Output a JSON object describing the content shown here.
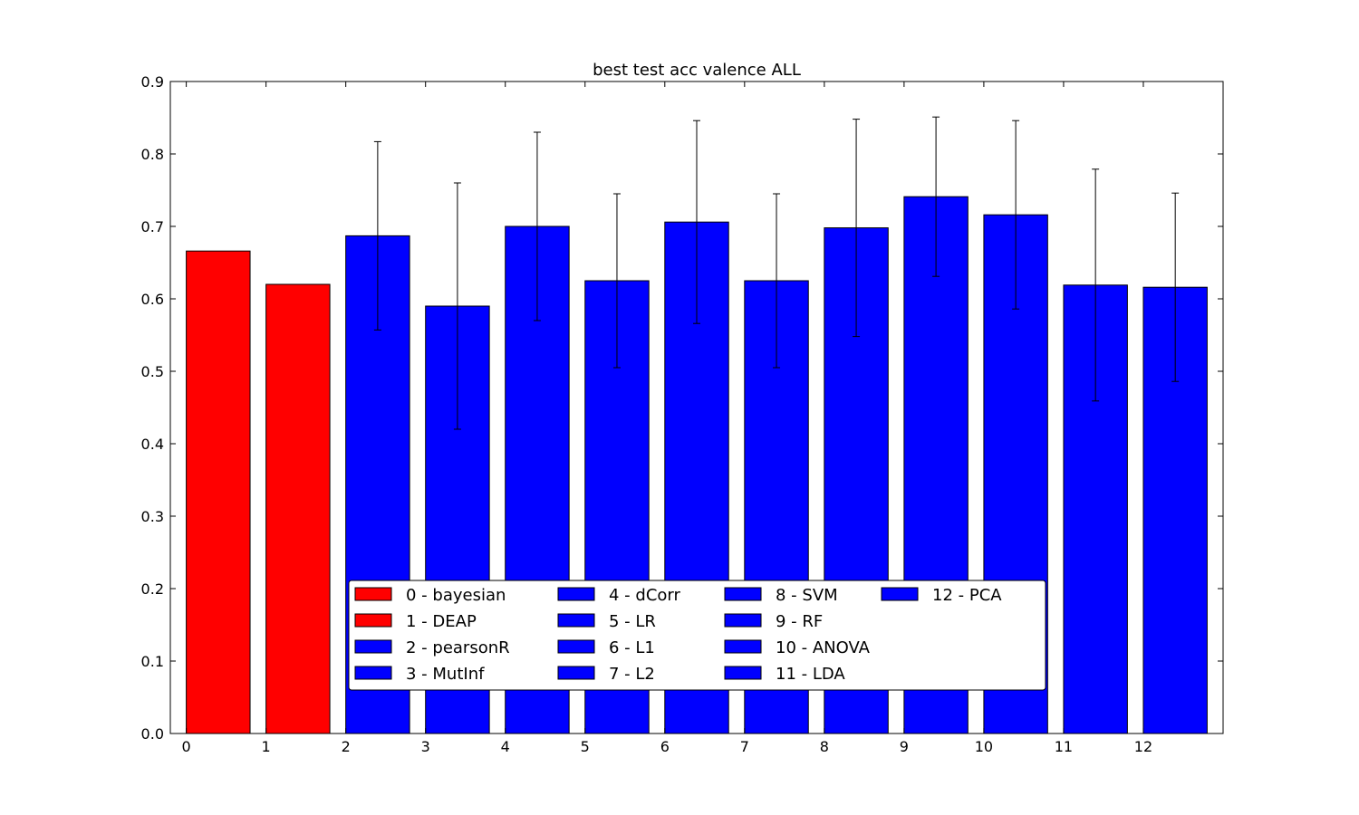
{
  "chart_data": {
    "type": "bar",
    "title": "best test acc valence ALL",
    "xlabel": "",
    "ylabel": "",
    "ylim": [
      0,
      0.9
    ],
    "xlim": [
      -0.2,
      13.0
    ],
    "bar_width": 0.8,
    "x_ticks": [
      "0",
      "1",
      "2",
      "3",
      "4",
      "5",
      "6",
      "7",
      "8",
      "9",
      "10",
      "11",
      "12"
    ],
    "y_ticks": [
      "0.0",
      "0.1",
      "0.2",
      "0.3",
      "0.4",
      "0.5",
      "0.6",
      "0.7",
      "0.8",
      "0.9"
    ],
    "categories": [
      "0",
      "1",
      "2",
      "3",
      "4",
      "5",
      "6",
      "7",
      "8",
      "9",
      "10",
      "11",
      "12"
    ],
    "values": [
      0.666,
      0.62,
      0.687,
      0.59,
      0.7,
      0.625,
      0.706,
      0.625,
      0.698,
      0.741,
      0.716,
      0.619,
      0.616
    ],
    "errors": [
      null,
      null,
      0.13,
      0.17,
      0.13,
      0.12,
      0.14,
      0.12,
      0.15,
      0.11,
      0.13,
      0.16,
      0.13
    ],
    "colors": [
      "#ff0000",
      "#ff0000",
      "#0000ff",
      "#0000ff",
      "#0000ff",
      "#0000ff",
      "#0000ff",
      "#0000ff",
      "#0000ff",
      "#0000ff",
      "#0000ff",
      "#0000ff",
      "#0000ff"
    ],
    "legend": {
      "placement": "lower-center",
      "columns": 4,
      "entries": [
        {
          "label": "0 - bayesian",
          "color": "#ff0000"
        },
        {
          "label": "1 - DEAP",
          "color": "#ff0000"
        },
        {
          "label": "2 - pearsonR",
          "color": "#0000ff"
        },
        {
          "label": "3 - MutInf",
          "color": "#0000ff"
        },
        {
          "label": "4 - dCorr",
          "color": "#0000ff"
        },
        {
          "label": "5 - LR",
          "color": "#0000ff"
        },
        {
          "label": "6 - L1",
          "color": "#0000ff"
        },
        {
          "label": "7 - L2",
          "color": "#0000ff"
        },
        {
          "label": "8 - SVM",
          "color": "#0000ff"
        },
        {
          "label": "9 - RF",
          "color": "#0000ff"
        },
        {
          "label": "10 - ANOVA",
          "color": "#0000ff"
        },
        {
          "label": "11 - LDA",
          "color": "#0000ff"
        },
        {
          "label": "12 - PCA",
          "color": "#0000ff"
        }
      ]
    },
    "grid": false
  }
}
